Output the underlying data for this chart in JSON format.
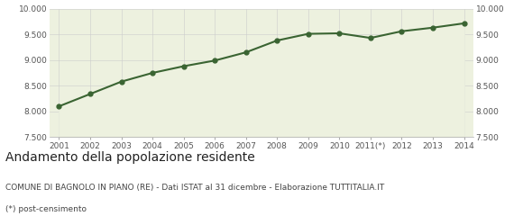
{
  "years": [
    2001,
    2002,
    2003,
    2004,
    2005,
    2006,
    2007,
    2008,
    2009,
    2010,
    2011,
    2012,
    2013,
    2014
  ],
  "year_labels": [
    "2001",
    "2002",
    "2003",
    "2004",
    "2005",
    "2006",
    "2007",
    "2008",
    "2009",
    "2010",
    "2011(*)",
    "2012",
    "2013",
    "2014"
  ],
  "values": [
    8100,
    8340,
    8580,
    8750,
    8880,
    8990,
    9150,
    9380,
    9510,
    9520,
    9430,
    9560,
    9630,
    9714
  ],
  "ylim": [
    7500,
    10000
  ],
  "yticks": [
    7500,
    8000,
    8500,
    9000,
    9500,
    10000
  ],
  "line_color": "#3a6432",
  "fill_color": "#edf1df",
  "marker_color": "#3a6432",
  "bg_color": "#ffffff",
  "grid_color": "#cccccc",
  "title": "Andamento della popolazione residente",
  "subtitle": "COMUNE DI BAGNOLO IN PIANO (RE) - Dati ISTAT al 31 dicembre - Elaborazione TUTTITALIA.IT",
  "footnote": "(*) post-censimento",
  "title_fontsize": 10,
  "subtitle_fontsize": 6.5,
  "footnote_fontsize": 6.5,
  "tick_fontsize": 6.5
}
